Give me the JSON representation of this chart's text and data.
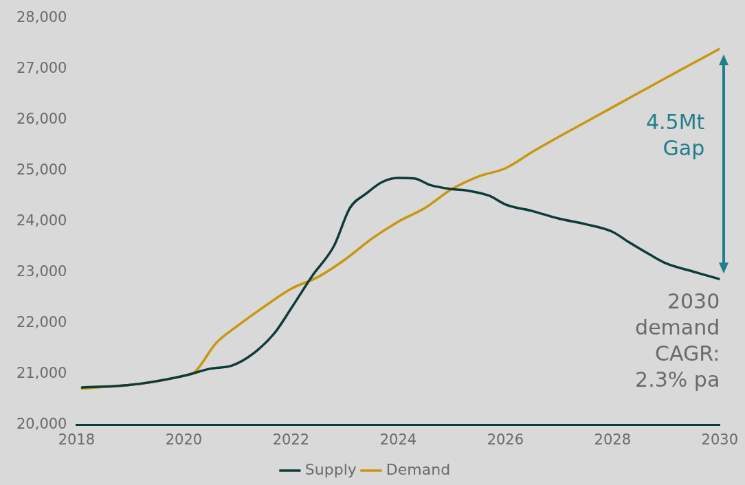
{
  "chart_data": {
    "type": "line",
    "xlim": [
      2018,
      2030
    ],
    "xticks": [
      2018,
      2020,
      2022,
      2024,
      2026,
      2028,
      2030
    ],
    "ylim": [
      20000,
      28000
    ],
    "yticks": [
      {
        "value": 20000,
        "label": "20,000"
      },
      {
        "value": 21000,
        "label": "21,000"
      },
      {
        "value": 22000,
        "label": "22,000"
      },
      {
        "value": 23000,
        "label": "23,000"
      },
      {
        "value": 24000,
        "label": "24,000"
      },
      {
        "value": 25000,
        "label": "25,000"
      },
      {
        "value": 26000,
        "label": "26,000"
      },
      {
        "value": 27000,
        "label": "27,000"
      },
      {
        "value": 28000,
        "label": "28,000"
      }
    ],
    "grid": false,
    "legend": "bottom",
    "annotations": [
      "4.5Mt\nGap",
      "2030\ndemand\nCAGR:\n2.3% pa"
    ],
    "series": [
      {
        "name": "Supply",
        "color": "#0d3b3b",
        "x": [
          2018.1,
          2019,
          2020,
          2020.5,
          2020.9,
          2021.3,
          2021.7,
          2022,
          2022.4,
          2022.8,
          2023.1,
          2023.4,
          2023.7,
          2024,
          2024.3,
          2024.6,
          2025,
          2025.3,
          2025.7,
          2026,
          2026.5,
          2027,
          2027.5,
          2028,
          2028.3,
          2028.7,
          2029,
          2029.5,
          2030
        ],
        "values": [
          20740,
          20790,
          20970,
          21110,
          21170,
          21410,
          21820,
          22290,
          22940,
          23520,
          24270,
          24550,
          24780,
          24860,
          24850,
          24720,
          24640,
          24610,
          24510,
          24340,
          24210,
          24060,
          23950,
          23800,
          23600,
          23350,
          23180,
          23020,
          22870
        ]
      },
      {
        "name": "Demand",
        "color": "#c9960c",
        "x": [
          2018.1,
          2019,
          2019.5,
          2020,
          2020.2,
          2020.6,
          2021,
          2021.5,
          2022,
          2022.5,
          2023,
          2023.5,
          2024,
          2024.5,
          2025,
          2025.5,
          2026,
          2026.5,
          2027,
          2028,
          2029,
          2030
        ],
        "values": [
          20720,
          20790,
          20860,
          20970,
          21040,
          21610,
          21950,
          22330,
          22680,
          22910,
          23250,
          23660,
          24000,
          24270,
          24640,
          24890,
          25050,
          25370,
          25670,
          26250,
          26830,
          27400
        ]
      }
    ]
  }
}
